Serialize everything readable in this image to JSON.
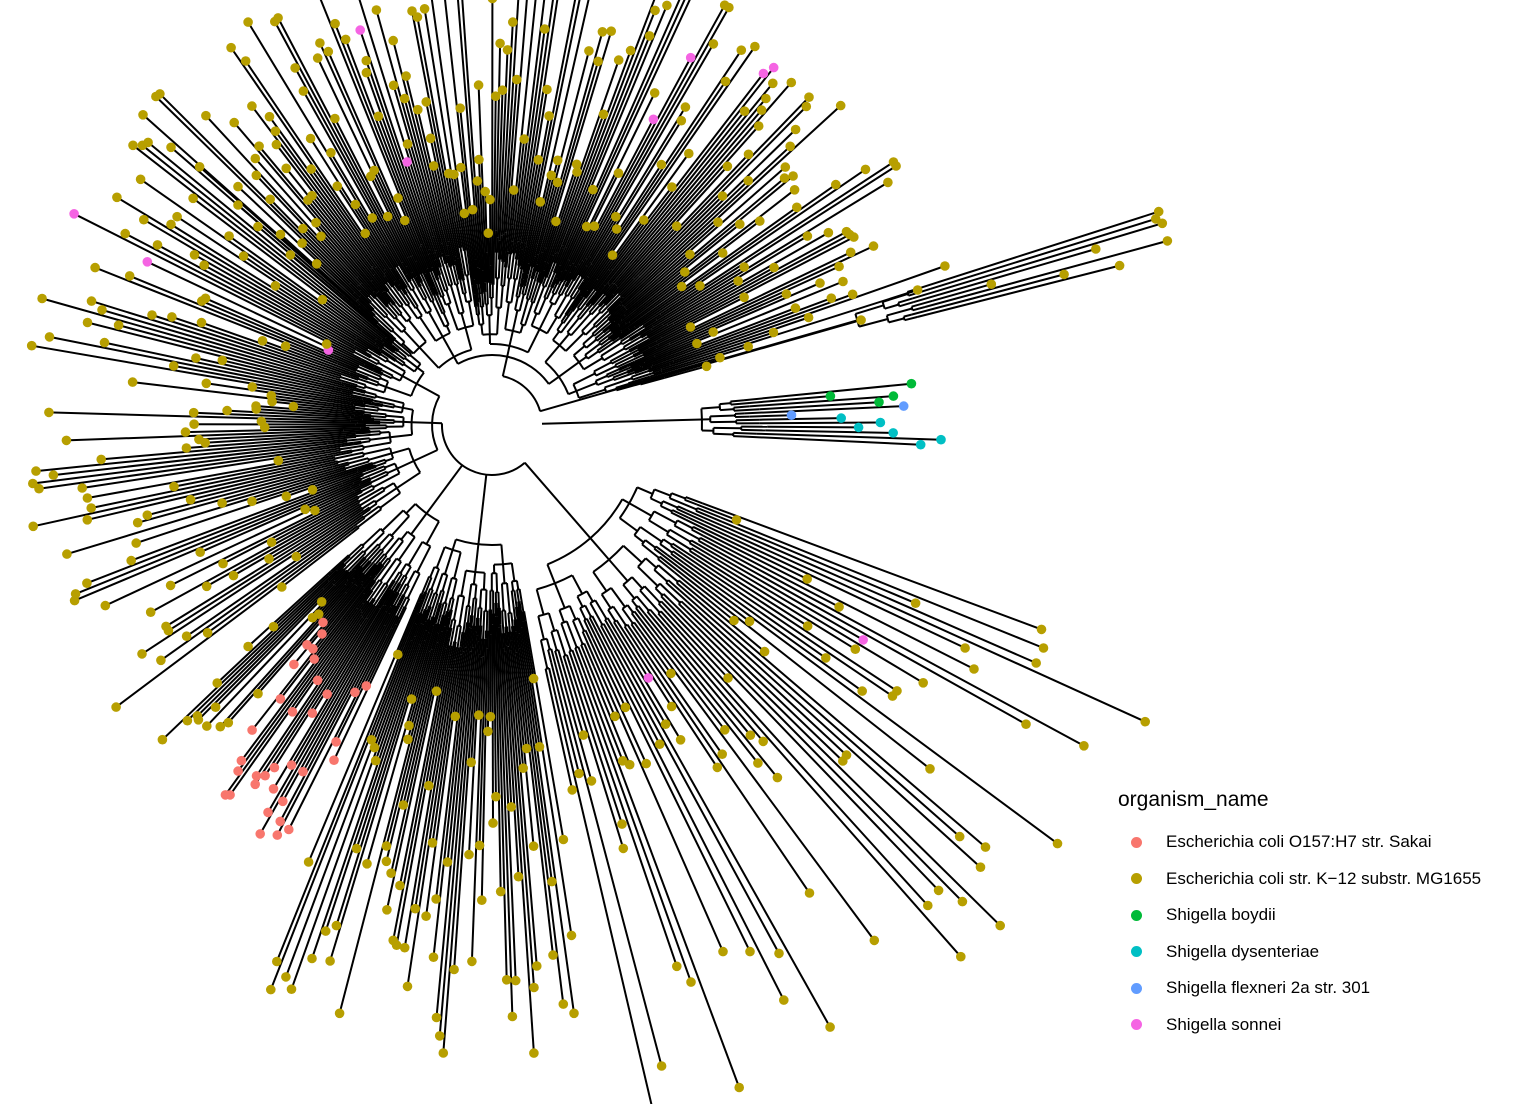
{
  "chart_data": {
    "type": "tree",
    "layout": "circular",
    "root_label": "",
    "legend": {
      "title": "organism_name",
      "position": "right",
      "entries": [
        {
          "name": "Escherichia coli O157:H7 str. Sakai",
          "color": "#F8766D"
        },
        {
          "name": "Escherichia coli str. K−12 substr. MG1655",
          "color": "#B79F00"
        },
        {
          "name": "Shigella boydii",
          "color": "#00BA38"
        },
        {
          "name": "Shigella dysenteriae",
          "color": "#00BFC4"
        },
        {
          "name": "Shigella flexneri 2a str. 301",
          "color": "#619CFF"
        },
        {
          "name": "Shigella sonnei",
          "color": "#F564E3"
        }
      ]
    },
    "clades": [
      {
        "organism": "Escherichia coli str. K−12 substr. MG1655",
        "tip_count": 620,
        "span_deg": [
          150,
          352
        ]
      },
      {
        "organism": "Escherichia coli O157:H7 str. Sakai",
        "tip_count": 70,
        "span_deg": [
          112,
          128
        ]
      },
      {
        "organism": "Shigella boydii",
        "tip_count": 6,
        "span_deg": [
          343,
          347
        ]
      },
      {
        "organism": "Shigella dysenteriae",
        "tip_count": 8,
        "span_deg": [
          0,
          4
        ]
      },
      {
        "organism": "Shigella flexneri 2a str. 301",
        "tip_count": 4,
        "span_deg": [
          344,
          348
        ]
      },
      {
        "organism": "Shigella sonnei",
        "tip_count": 12,
        "span_deg": [
          0,
          360
        ]
      }
    ],
    "grid": false,
    "axes": false
  }
}
